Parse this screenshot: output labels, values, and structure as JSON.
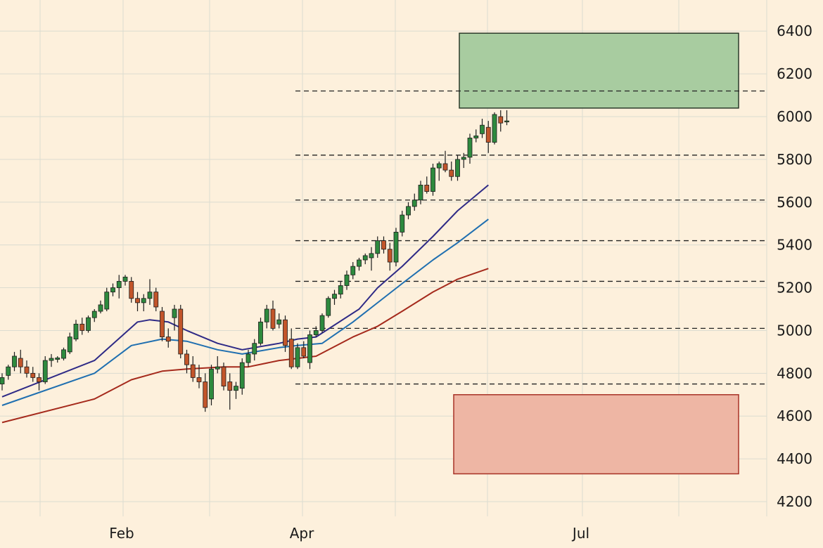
{
  "chart_data": {
    "type": "candlestick",
    "x_axis": {
      "labels": [
        "Feb",
        "Apr",
        "Jul"
      ]
    },
    "y_axis": {
      "position": "right",
      "range": [
        4150,
        6450
      ],
      "ticks": [
        4200,
        4400,
        4600,
        4800,
        5000,
        5200,
        5400,
        5600,
        5800,
        6000,
        6200,
        6400
      ]
    },
    "grid": true,
    "colors": {
      "background": "#fdf0dc",
      "grid": "#dcdcd0",
      "up_candle": "#2e8a3e",
      "down_candle": "#c2552a",
      "ma_short": "#2e2a86",
      "ma_mid": "#1f6fb0",
      "ma_long": "#a52a1c",
      "target_zone": "#a8cca0",
      "stop_zone": "#eeb6a4"
    },
    "candles": [
      {
        "o": 4750,
        "h": 4800,
        "l": 4720,
        "c": 4780
      },
      {
        "o": 4790,
        "h": 4840,
        "l": 4770,
        "c": 4830
      },
      {
        "o": 4830,
        "h": 4900,
        "l": 4810,
        "c": 4880
      },
      {
        "o": 4870,
        "h": 4910,
        "l": 4800,
        "c": 4830
      },
      {
        "o": 4830,
        "h": 4860,
        "l": 4780,
        "c": 4800
      },
      {
        "o": 4800,
        "h": 4830,
        "l": 4760,
        "c": 4780
      },
      {
        "o": 4780,
        "h": 4800,
        "l": 4720,
        "c": 4760
      },
      {
        "o": 4760,
        "h": 4880,
        "l": 4750,
        "c": 4860
      },
      {
        "o": 4860,
        "h": 4890,
        "l": 4830,
        "c": 4870
      },
      {
        "o": 4865,
        "h": 4880,
        "l": 4850,
        "c": 4872
      },
      {
        "o": 4870,
        "h": 4920,
        "l": 4860,
        "c": 4910
      },
      {
        "o": 4900,
        "h": 4990,
        "l": 4890,
        "c": 4970
      },
      {
        "o": 4960,
        "h": 5050,
        "l": 4950,
        "c": 5030
      },
      {
        "o": 5030,
        "h": 5060,
        "l": 4980,
        "c": 5000
      },
      {
        "o": 5000,
        "h": 5070,
        "l": 4990,
        "c": 5060
      },
      {
        "o": 5060,
        "h": 5100,
        "l": 5040,
        "c": 5090
      },
      {
        "o": 5090,
        "h": 5140,
        "l": 5080,
        "c": 5120
      },
      {
        "o": 5100,
        "h": 5200,
        "l": 5090,
        "c": 5180
      },
      {
        "o": 5180,
        "h": 5220,
        "l": 5160,
        "c": 5200
      },
      {
        "o": 5200,
        "h": 5260,
        "l": 5150,
        "c": 5230
      },
      {
        "o": 5230,
        "h": 5260,
        "l": 5210,
        "c": 5250
      },
      {
        "o": 5230,
        "h": 5250,
        "l": 5130,
        "c": 5150
      },
      {
        "o": 5150,
        "h": 5180,
        "l": 5090,
        "c": 5130
      },
      {
        "o": 5130,
        "h": 5170,
        "l": 5090,
        "c": 5150
      },
      {
        "o": 5150,
        "h": 5240,
        "l": 5120,
        "c": 5180
      },
      {
        "o": 5180,
        "h": 5200,
        "l": 5090,
        "c": 5110
      },
      {
        "o": 5090,
        "h": 5110,
        "l": 4950,
        "c": 4970
      },
      {
        "o": 4970,
        "h": 5010,
        "l": 4920,
        "c": 4950
      },
      {
        "o": 5060,
        "h": 5120,
        "l": 5000,
        "c": 5100
      },
      {
        "o": 5100,
        "h": 5120,
        "l": 4870,
        "c": 4890
      },
      {
        "o": 4890,
        "h": 4910,
        "l": 4800,
        "c": 4840
      },
      {
        "o": 4840,
        "h": 4880,
        "l": 4760,
        "c": 4780
      },
      {
        "o": 4780,
        "h": 4840,
        "l": 4730,
        "c": 4760
      },
      {
        "o": 4760,
        "h": 4800,
        "l": 4620,
        "c": 4640
      },
      {
        "o": 4680,
        "h": 4840,
        "l": 4650,
        "c": 4820
      },
      {
        "o": 4820,
        "h": 4880,
        "l": 4800,
        "c": 4830
      },
      {
        "o": 4830,
        "h": 4850,
        "l": 4720,
        "c": 4740
      },
      {
        "o": 4760,
        "h": 4800,
        "l": 4630,
        "c": 4720
      },
      {
        "o": 4720,
        "h": 4760,
        "l": 4680,
        "c": 4740
      },
      {
        "o": 4730,
        "h": 4870,
        "l": 4700,
        "c": 4850
      },
      {
        "o": 4850,
        "h": 4910,
        "l": 4830,
        "c": 4890
      },
      {
        "o": 4890,
        "h": 4960,
        "l": 4860,
        "c": 4940
      },
      {
        "o": 4940,
        "h": 5060,
        "l": 4930,
        "c": 5040
      },
      {
        "o": 5040,
        "h": 5120,
        "l": 5010,
        "c": 5100
      },
      {
        "o": 5100,
        "h": 5140,
        "l": 5000,
        "c": 5010
      },
      {
        "o": 5030,
        "h": 5080,
        "l": 5010,
        "c": 5050
      },
      {
        "o": 5050,
        "h": 5070,
        "l": 4900,
        "c": 4930
      },
      {
        "o": 4960,
        "h": 5010,
        "l": 4820,
        "c": 4830
      },
      {
        "o": 4830,
        "h": 4940,
        "l": 4820,
        "c": 4920
      },
      {
        "o": 4920,
        "h": 4950,
        "l": 4870,
        "c": 4880
      },
      {
        "o": 4850,
        "h": 5000,
        "l": 4820,
        "c": 4980
      },
      {
        "o": 4980,
        "h": 5020,
        "l": 4970,
        "c": 5000
      },
      {
        "o": 5000,
        "h": 5080,
        "l": 4990,
        "c": 5070
      },
      {
        "o": 5070,
        "h": 5160,
        "l": 5060,
        "c": 5150
      },
      {
        "o": 5150,
        "h": 5190,
        "l": 5120,
        "c": 5170
      },
      {
        "o": 5170,
        "h": 5230,
        "l": 5150,
        "c": 5210
      },
      {
        "o": 5210,
        "h": 5280,
        "l": 5190,
        "c": 5260
      },
      {
        "o": 5260,
        "h": 5320,
        "l": 5240,
        "c": 5300
      },
      {
        "o": 5300,
        "h": 5340,
        "l": 5280,
        "c": 5330
      },
      {
        "o": 5330,
        "h": 5360,
        "l": 5310,
        "c": 5350
      },
      {
        "o": 5340,
        "h": 5390,
        "l": 5280,
        "c": 5360
      },
      {
        "o": 5360,
        "h": 5440,
        "l": 5340,
        "c": 5420
      },
      {
        "o": 5420,
        "h": 5440,
        "l": 5360,
        "c": 5380
      },
      {
        "o": 5380,
        "h": 5410,
        "l": 5280,
        "c": 5320
      },
      {
        "o": 5320,
        "h": 5480,
        "l": 5300,
        "c": 5460
      },
      {
        "o": 5460,
        "h": 5560,
        "l": 5440,
        "c": 5540
      },
      {
        "o": 5540,
        "h": 5600,
        "l": 5520,
        "c": 5580
      },
      {
        "o": 5580,
        "h": 5640,
        "l": 5560,
        "c": 5610
      },
      {
        "o": 5610,
        "h": 5700,
        "l": 5590,
        "c": 5680
      },
      {
        "o": 5680,
        "h": 5720,
        "l": 5640,
        "c": 5650
      },
      {
        "o": 5650,
        "h": 5780,
        "l": 5630,
        "c": 5760
      },
      {
        "o": 5760,
        "h": 5790,
        "l": 5700,
        "c": 5780
      },
      {
        "o": 5780,
        "h": 5840,
        "l": 5740,
        "c": 5750
      },
      {
        "o": 5750,
        "h": 5790,
        "l": 5700,
        "c": 5720
      },
      {
        "o": 5720,
        "h": 5820,
        "l": 5700,
        "c": 5800
      },
      {
        "o": 5800,
        "h": 5830,
        "l": 5760,
        "c": 5810
      },
      {
        "o": 5810,
        "h": 5920,
        "l": 5780,
        "c": 5900
      },
      {
        "o": 5900,
        "h": 5940,
        "l": 5880,
        "c": 5910
      },
      {
        "o": 5920,
        "h": 5990,
        "l": 5900,
        "c": 5960
      },
      {
        "o": 5950,
        "h": 5980,
        "l": 5830,
        "c": 5880
      },
      {
        "o": 5880,
        "h": 6020,
        "l": 5870,
        "c": 6010
      },
      {
        "o": 6000,
        "h": 6030,
        "l": 5930,
        "c": 5970
      },
      {
        "o": 5975,
        "h": 6030,
        "l": 5960,
        "c": 5980
      }
    ],
    "moving_averages": [
      {
        "key": "ma_short",
        "points": [
          [
            0,
            4690
          ],
          [
            15,
            4860
          ],
          [
            22,
            5040
          ],
          [
            24,
            5050
          ],
          [
            27,
            5040
          ],
          [
            30,
            5000
          ],
          [
            35,
            4940
          ],
          [
            39,
            4910
          ],
          [
            45,
            4940
          ],
          [
            48,
            4960
          ],
          [
            51,
            4970
          ],
          [
            58,
            5100
          ],
          [
            61,
            5200
          ],
          [
            65,
            5300
          ],
          [
            70,
            5440
          ],
          [
            74,
            5560
          ],
          [
            79,
            5680
          ]
        ]
      },
      {
        "key": "ma_mid",
        "points": [
          [
            0,
            4650
          ],
          [
            15,
            4800
          ],
          [
            21,
            4930
          ],
          [
            26,
            4960
          ],
          [
            30,
            4950
          ],
          [
            35,
            4910
          ],
          [
            39,
            4890
          ],
          [
            45,
            4920
          ],
          [
            48,
            4930
          ],
          [
            52,
            4940
          ],
          [
            57,
            5040
          ],
          [
            61,
            5130
          ],
          [
            65,
            5220
          ],
          [
            70,
            5330
          ],
          [
            74,
            5410
          ],
          [
            79,
            5520
          ]
        ]
      },
      {
        "key": "ma_long",
        "points": [
          [
            0,
            4570
          ],
          [
            15,
            4680
          ],
          [
            21,
            4770
          ],
          [
            26,
            4810
          ],
          [
            30,
            4820
          ],
          [
            36,
            4830
          ],
          [
            40,
            4830
          ],
          [
            45,
            4860
          ],
          [
            51,
            4880
          ],
          [
            57,
            4970
          ],
          [
            61,
            5020
          ],
          [
            65,
            5090
          ],
          [
            70,
            5180
          ],
          [
            74,
            5240
          ],
          [
            79,
            5290
          ]
        ]
      }
    ],
    "levels": [
      6120,
      5820,
      5610,
      5420,
      5230,
      5010,
      4750
    ],
    "zones": [
      {
        "key": "target_zone",
        "from": 6040,
        "to": 6390
      },
      {
        "key": "stop_zone",
        "from": 4330,
        "to": 4700
      }
    ]
  }
}
